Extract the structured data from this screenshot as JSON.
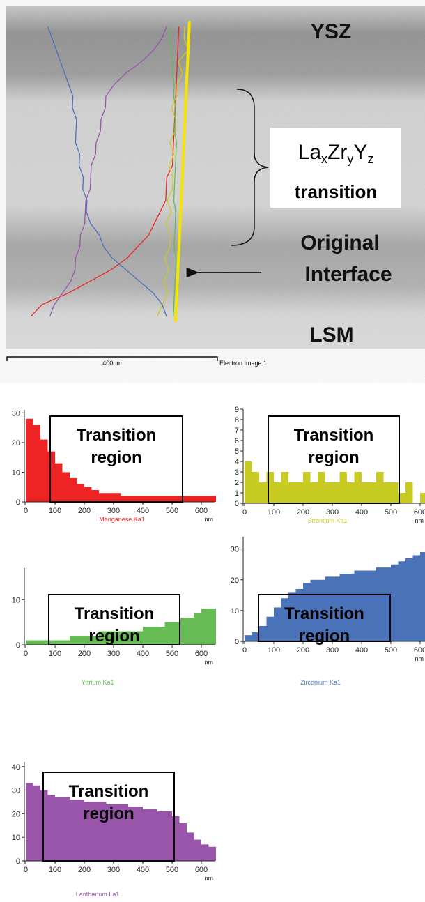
{
  "image": {
    "labels": {
      "ysz": "YSZ",
      "transition": "transition",
      "original": "Original",
      "interface": "Interface",
      "lsm": "LSM"
    },
    "formula": {
      "elements": [
        "La",
        "Zr",
        "Y"
      ],
      "subscripts": [
        "x",
        "y",
        "z"
      ]
    },
    "scale_bar": "400nm",
    "caption": "Electron Image 1"
  },
  "chart_data": [
    {
      "type": "histogram",
      "xlabel": "Manganese Ka1",
      "x_unit": "nm",
      "color": "#ee2424",
      "bins": [
        0,
        25,
        50,
        75,
        100,
        125,
        150,
        175,
        200,
        225,
        250,
        275,
        300,
        325,
        350,
        375,
        400,
        425,
        450,
        475,
        500,
        525,
        550,
        575,
        600,
        625,
        650
      ],
      "values": [
        28,
        26,
        21,
        17,
        13,
        10,
        8,
        6,
        5,
        4,
        3,
        3,
        3,
        2,
        2,
        2,
        2,
        2,
        2,
        2,
        2,
        2,
        2,
        2,
        2,
        2
      ],
      "xlim": [
        0,
        650
      ],
      "xticks": [
        0,
        100,
        200,
        300,
        400,
        500,
        600
      ],
      "ylim": [
        0,
        31
      ],
      "yticks": [
        0,
        10,
        20,
        30
      ],
      "annotation": [
        "Transition",
        "region"
      ]
    },
    {
      "type": "histogram",
      "xlabel": "Strontium Ka1",
      "x_unit": "nm",
      "color": "#c8cc22",
      "bins": [
        0,
        25,
        50,
        75,
        100,
        125,
        150,
        175,
        200,
        225,
        250,
        275,
        300,
        325,
        350,
        375,
        400,
        425,
        450,
        475,
        500,
        525,
        550,
        575,
        600,
        625,
        650
      ],
      "values": [
        4,
        3,
        2,
        3,
        2,
        3,
        2,
        2,
        3,
        2,
        3,
        2,
        2,
        3,
        2,
        3,
        2,
        2,
        3,
        2,
        2,
        1,
        2,
        0,
        1,
        1
      ],
      "xlim": [
        0,
        650
      ],
      "xticks": [
        0,
        100,
        200,
        300,
        400,
        500,
        600
      ],
      "ylim": [
        0,
        9
      ],
      "yticks": [
        0,
        1,
        2,
        3,
        4,
        5,
        6,
        7,
        8,
        9
      ],
      "annotation": [
        "Transition",
        "region"
      ]
    },
    {
      "type": "histogram",
      "xlabel": "Yttrium Ka1",
      "x_unit": "nm",
      "color": "#66bb55",
      "bins": [
        0,
        25,
        50,
        75,
        100,
        125,
        150,
        175,
        200,
        225,
        250,
        275,
        300,
        325,
        350,
        375,
        400,
        425,
        450,
        475,
        500,
        525,
        550,
        575,
        600,
        625,
        650
      ],
      "values": [
        1,
        1,
        1,
        1,
        1,
        1,
        2,
        2,
        2,
        2,
        3,
        3,
        3,
        3,
        3,
        3,
        4,
        4,
        4,
        5,
        5,
        6,
        6,
        7,
        8,
        8
      ],
      "xlim": [
        0,
        650
      ],
      "xticks": [
        0,
        100,
        200,
        300,
        400,
        500,
        600
      ],
      "ylim": [
        0,
        17
      ],
      "yticks": [
        0,
        10
      ],
      "annotation": [
        "Transition",
        "region"
      ]
    },
    {
      "type": "histogram",
      "xlabel": "Zirconium Ka1",
      "x_unit": "nm",
      "color": "#4a72b8",
      "bins": [
        0,
        25,
        50,
        75,
        100,
        125,
        150,
        175,
        200,
        225,
        250,
        275,
        300,
        325,
        350,
        375,
        400,
        425,
        450,
        475,
        500,
        525,
        550,
        575,
        600,
        625,
        650
      ],
      "values": [
        2,
        3,
        5,
        8,
        11,
        14,
        16,
        17,
        19,
        20,
        20,
        21,
        21,
        22,
        22,
        23,
        23,
        23,
        24,
        24,
        25,
        26,
        27,
        28,
        29,
        30
      ],
      "xlim": [
        0,
        650
      ],
      "xticks": [
        0,
        100,
        200,
        300,
        400,
        500,
        600
      ],
      "ylim": [
        0,
        34
      ],
      "yticks": [
        0,
        10,
        20,
        30
      ],
      "annotation": [
        "Transition",
        "region"
      ]
    },
    {
      "type": "histogram",
      "xlabel": "Lanthanum La1",
      "x_unit": "nm",
      "color": "#9955aa",
      "bins": [
        0,
        25,
        50,
        75,
        100,
        125,
        150,
        175,
        200,
        225,
        250,
        275,
        300,
        325,
        350,
        375,
        400,
        425,
        450,
        475,
        500,
        525,
        550,
        575,
        600,
        625,
        650
      ],
      "values": [
        33,
        32,
        30,
        28,
        27,
        27,
        26,
        26,
        25,
        25,
        25,
        24,
        24,
        24,
        23,
        23,
        22,
        22,
        21,
        21,
        19,
        16,
        12,
        9,
        7,
        6
      ],
      "xlim": [
        0,
        650
      ],
      "xticks": [
        0,
        100,
        200,
        300,
        400,
        500,
        600
      ],
      "ylim": [
        0,
        42
      ],
      "yticks": [
        0,
        10,
        20,
        30,
        40
      ],
      "annotation": [
        "Transition",
        "region"
      ]
    }
  ]
}
